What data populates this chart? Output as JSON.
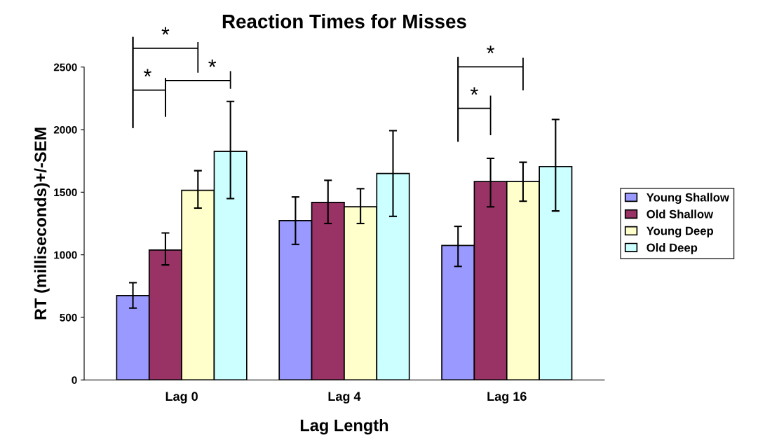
{
  "chart_data": {
    "type": "bar",
    "title": "Reaction Times for Misses",
    "xlabel": "Lag Length",
    "ylabel": "RT (milliseconds)+/-SEM",
    "categories": [
      "Lag 0",
      "Lag 4",
      "Lag 16"
    ],
    "series": [
      {
        "name": "Young Shallow",
        "color": "#9999ff",
        "values": [
          674,
          1273,
          1074
        ],
        "errors": [
          [
            574,
            777
          ],
          [
            1083,
            1462
          ],
          [
            907,
            1227
          ]
        ]
      },
      {
        "name": "Old Shallow",
        "color": "#993366",
        "values": [
          1038,
          1419,
          1585
        ],
        "errors": [
          [
            919,
            1174
          ],
          [
            1250,
            1595
          ],
          [
            1383,
            1771
          ]
        ]
      },
      {
        "name": "Young Deep",
        "color": "#ffffcc",
        "values": [
          1515,
          1384,
          1585
        ],
        "errors": [
          [
            1373,
            1672
          ],
          [
            1250,
            1528
          ],
          [
            1428,
            1739
          ]
        ]
      },
      {
        "name": "Old Deep",
        "color": "#ccffff",
        "values": [
          1826,
          1650,
          1705
        ],
        "errors": [
          [
            1449,
            2225
          ],
          [
            1307,
            1992
          ],
          [
            1350,
            2081
          ]
        ]
      }
    ],
    "ylim": [
      0,
      2500
    ],
    "yticks": [
      0,
      500,
      1000,
      1500,
      2000,
      2500
    ],
    "grid": false,
    "legend": "right",
    "annotations": [
      "*",
      "*",
      "*",
      "*",
      "*"
    ]
  }
}
